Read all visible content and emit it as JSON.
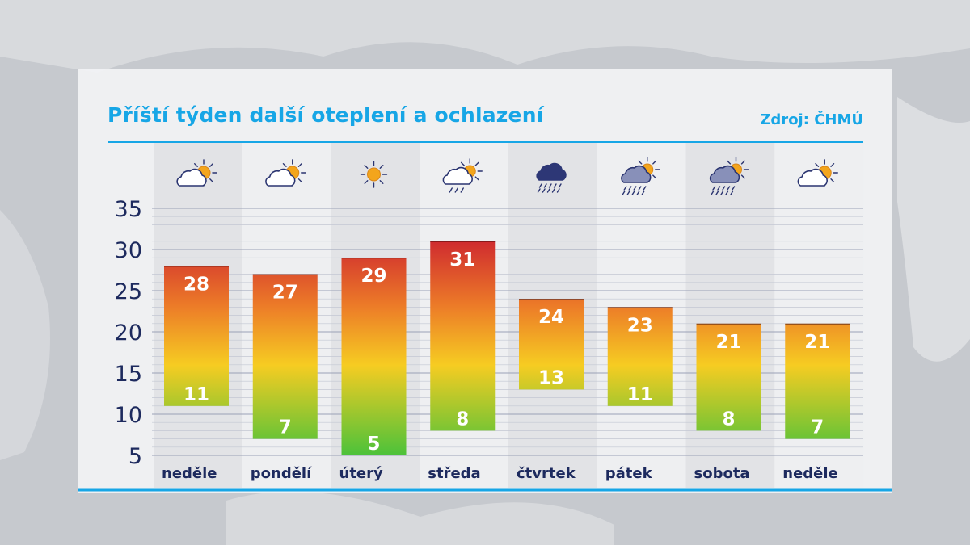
{
  "title": "Příští týden další oteplení a ochlazení",
  "source": "Zdroj: ČHMÚ",
  "colors": {
    "accent": "#17a6e6",
    "axis_text": "#1d2a5e",
    "gradient_hot": "#cf2a2f",
    "gradient_mid": "#f6cc22",
    "gradient_cold": "#4cc23a"
  },
  "chart_data": {
    "type": "bar",
    "subtype": "floating-range",
    "categories": [
      "neděle",
      "pondělí",
      "úterý",
      "středa",
      "čtvrtek",
      "pátek",
      "sobota",
      "neděle"
    ],
    "series": [
      {
        "values_max": [
          28,
          27,
          29,
          31,
          24,
          23,
          21,
          21
        ]
      },
      {
        "values_min": [
          11,
          7,
          5,
          8,
          13,
          11,
          8,
          7
        ]
      }
    ],
    "yticks": [
      5,
      10,
      15,
      20,
      25,
      30,
      35
    ],
    "ylim": [
      5,
      35
    ],
    "grid": true,
    "weather_icons": [
      "partly-cloudy-icon",
      "partly-cloudy-icon",
      "sun-icon",
      "partly-cloudy-drizzle-icon",
      "rain-cloud-icon",
      "partly-cloudy-rain-icon",
      "partly-cloudy-rain-icon",
      "partly-cloudy-icon"
    ]
  }
}
